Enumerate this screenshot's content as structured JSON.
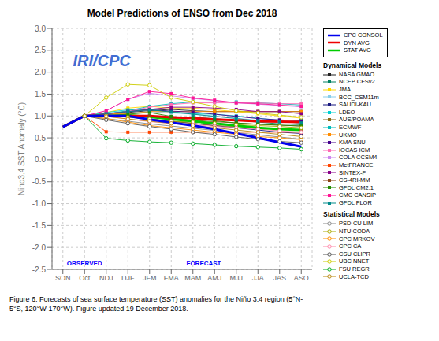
{
  "chart_data": {
    "type": "line",
    "title": "Model Predictions of ENSO from Dec 2018",
    "y_label": "Nino3.4 SST Anomaly (°C)",
    "caption": "Figure 6. Forecasts of sea surface temperature (SST) anomalies for the Niño 3.4 region (5°N-\n5°S, 120°W-170°W). Figure updated 19 December 2018.",
    "annotations": [
      "OBSERVED",
      "FORECAST",
      "IRI/CPC",
      "Dynamical Models",
      "Statistical Models"
    ],
    "categories": [
      "SON",
      "Oct",
      "NDJ",
      "DJF",
      "JFM",
      "FMA",
      "MAM",
      "AMJ",
      "MJJ",
      "JJA",
      "JAS",
      "ASO"
    ],
    "ylim": [
      -2.5,
      3.0
    ],
    "yticks": [
      -2.5,
      {
        "value": -2,
        "label": "-2.0"
      },
      -1.5,
      {
        "value": -1,
        "label": "-1.0"
      },
      -0.5,
      {
        "value": 0,
        "label": "0.0"
      },
      0.5,
      {
        "value": 1,
        "label": "1.0"
      },
      1.5,
      {
        "value": 2,
        "label": "2.0"
      },
      2.5,
      {
        "value": 3,
        "label": "3.0"
      }
    ],
    "grid": true,
    "legend": "right",
    "series": [
      {
        "name": "CPC CONSOL",
        "color": "#0000EE",
        "values": [
          0.75,
          1.0,
          1.0,
          1.0,
          0.92,
          0.85,
          0.78,
          0.7,
          0.6,
          0.5,
          0.4,
          0.3
        ]
      },
      {
        "name": "DYN AVG",
        "color": "#EE0000",
        "values": [
          0.75,
          1.0,
          1.0,
          1.0,
          1.0,
          0.97,
          0.95,
          0.92,
          0.9,
          0.88,
          0.87,
          0.86
        ]
      },
      {
        "name": "STAT AVG",
        "color": "#00CC00",
        "values": [
          0.75,
          1.0,
          1.0,
          1.02,
          0.98,
          0.93,
          0.88,
          0.83,
          0.78,
          0.73,
          0.7,
          0.68
        ]
      },
      {
        "name": "NASA GMAO",
        "color": "#222222",
        "marker": "square",
        "values": [
          null,
          1.0,
          1.02,
          1.08,
          1.12,
          1.15,
          1.12,
          1.1,
          1.1,
          1.1,
          1.1,
          1.1
        ]
      },
      {
        "name": "NCEP CFSv2",
        "color": "#008060",
        "marker": "square",
        "values": [
          null,
          1.0,
          1.02,
          1.0,
          1.0,
          0.98,
          0.97,
          0.94,
          0.9,
          0.86,
          0.82,
          0.8
        ]
      },
      {
        "name": "JMA",
        "color": "#FFD700",
        "marker": "square",
        "values": [
          null,
          1.0,
          1.08,
          1.18,
          1.22,
          1.18,
          1.18,
          1.14,
          1.1,
          1.05,
          1.0,
          0.95
        ]
      },
      {
        "name": "BCC_CSM11m",
        "color": "#87CEEB",
        "marker": "square",
        "values": [
          null,
          1.0,
          1.02,
          1.06,
          1.1,
          1.07,
          1.04,
          1.0,
          0.95,
          0.9,
          0.87,
          0.84
        ]
      },
      {
        "name": "SAUDI-KAU",
        "color": "#191980",
        "marker": "square",
        "values": [
          null,
          1.0,
          1.0,
          0.98,
          0.93,
          0.88,
          0.83,
          0.78,
          0.73,
          0.68,
          0.63,
          0.6
        ]
      },
      {
        "name": "LDEO",
        "color": "#00CED1",
        "marker": "square",
        "values": [
          null,
          1.0,
          1.08,
          1.14,
          1.14,
          1.1,
          1.05,
          1.04,
          1.0,
          0.95,
          0.9,
          0.9
        ]
      },
      {
        "name": "AUS/POAMA",
        "color": "#8B6914",
        "marker": "square",
        "values": [
          null,
          1.0,
          1.03,
          0.98,
          0.93,
          0.88,
          0.83,
          0.78,
          0.76,
          0.73,
          0.7,
          0.68
        ]
      },
      {
        "name": "ECMWF",
        "color": "#00BBBB",
        "marker": "square",
        "values": [
          null,
          1.0,
          1.05,
          1.12,
          1.22,
          1.28,
          1.32,
          1.32,
          1.32,
          1.3,
          1.28,
          1.25
        ]
      },
      {
        "name": "UKMO",
        "color": "#FF8C00",
        "marker": "square",
        "values": [
          null,
          1.0,
          1.05,
          1.05,
          1.1,
          1.1,
          1.1,
          1.1,
          1.1,
          1.1,
          1.1,
          1.1
        ]
      },
      {
        "name": "KMA SNU",
        "color": "#44008B",
        "marker": "square",
        "values": [
          null,
          1.0,
          1.05,
          1.1,
          1.14,
          1.11,
          1.09,
          1.04,
          0.99,
          0.94,
          0.91,
          0.89
        ]
      },
      {
        "name": "IOCAS ICM",
        "color": "#FF69B4",
        "marker": "square",
        "values": [
          null,
          1.0,
          1.05,
          1.1,
          1.2,
          1.26,
          1.3,
          1.3,
          1.3,
          1.3,
          1.28,
          1.28
        ]
      },
      {
        "name": "COLA CCSM4",
        "color": "#CC88EE",
        "marker": "square",
        "values": [
          null,
          1.0,
          1.12,
          1.38,
          1.52,
          1.46,
          1.4,
          1.35,
          1.3,
          1.27,
          1.24,
          1.21
        ]
      },
      {
        "name": "MetFRANCE",
        "color": "#FF4400",
        "marker": "square",
        "values": [
          null,
          1.0,
          0.64,
          0.63,
          0.63,
          0.63,
          0.63,
          0.63,
          0.63,
          0.63,
          0.63,
          0.63
        ]
      },
      {
        "name": "SINTEX-F",
        "color": "#880088",
        "marker": "square",
        "values": [
          null,
          1.0,
          1.05,
          1.1,
          1.15,
          1.2,
          1.2,
          1.18,
          1.15,
          1.1,
          1.1,
          1.05
        ]
      },
      {
        "name": "CS-4RI-MM",
        "color": "#8B4513",
        "marker": "square",
        "values": [
          null,
          1.0,
          1.0,
          1.0,
          1.0,
          0.95,
          0.9,
          0.87,
          0.84,
          0.81,
          0.79,
          0.77
        ]
      },
      {
        "name": "GFDL CM2.1",
        "color": "#228B00",
        "marker": "square",
        "values": [
          null,
          1.0,
          1.0,
          1.04,
          1.08,
          0.99,
          0.94,
          0.89,
          0.84,
          0.81,
          0.79,
          0.77
        ]
      },
      {
        "name": "CMC CANSIP",
        "color": "#FF1493",
        "marker": "square",
        "values": [
          null,
          1.0,
          1.12,
          1.38,
          1.56,
          1.51,
          1.41,
          1.36,
          1.3,
          1.28,
          1.25,
          1.22
        ]
      },
      {
        "name": "GFDL FLOR",
        "color": "#008B8B",
        "marker": "square",
        "values": [
          null,
          1.0,
          1.05,
          1.1,
          1.14,
          1.09,
          1.04,
          0.99,
          0.94,
          0.89,
          0.87,
          0.84
        ]
      },
      {
        "name": "PSD-CU LIM",
        "color": "#888888",
        "marker": "circle",
        "values": [
          null,
          1.0,
          0.94,
          0.88,
          0.82,
          0.77,
          0.72,
          0.67,
          0.62,
          0.57,
          0.52,
          0.47
        ]
      },
      {
        "name": "NTU CODA",
        "color": "#AAAA00",
        "marker": "circle",
        "values": [
          null,
          1.0,
          1.0,
          0.97,
          0.93,
          0.88,
          0.86,
          0.83,
          0.8,
          0.78,
          0.76,
          0.73
        ]
      },
      {
        "name": "CPC MRKOV",
        "color": "#FF8C00",
        "marker": "circle",
        "values": [
          null,
          1.0,
          0.94,
          0.86,
          0.78,
          0.73,
          0.68,
          0.63,
          0.58,
          0.53,
          0.5,
          0.46
        ]
      },
      {
        "name": "CPC CA",
        "color": "#FF88AA",
        "marker": "circle",
        "values": [
          null,
          1.0,
          0.99,
          0.93,
          0.87,
          0.83,
          0.8,
          0.76,
          0.73,
          0.7,
          0.66,
          0.63
        ]
      },
      {
        "name": "CSU CLIPR",
        "color": "#555555",
        "marker": "circle",
        "values": [
          null,
          1.0,
          0.91,
          0.83,
          0.76,
          0.7,
          0.63,
          0.58,
          0.52,
          0.47,
          0.42,
          0.39
        ]
      },
      {
        "name": "UBC NNET",
        "color": "#CCCC00",
        "marker": "circle",
        "values": [
          null,
          1.0,
          1.42,
          1.72,
          1.7,
          1.42,
          1.32,
          1.22,
          1.12,
          1.07,
          1.02,
          0.97
        ]
      },
      {
        "name": "FSU REGR",
        "color": "#00AA22",
        "marker": "circle",
        "values": [
          null,
          1.0,
          0.49,
          0.44,
          0.41,
          0.39,
          0.37,
          0.34,
          0.31,
          0.29,
          0.27,
          0.24
        ]
      },
      {
        "name": "UCLA-TCD",
        "color": "#B8860B",
        "marker": "circle",
        "values": [
          null,
          1.0,
          0.99,
          0.93,
          0.88,
          0.83,
          0.78,
          0.73,
          0.68,
          0.63,
          0.58,
          0.53
        ]
      },
      {
        "color": "#000000",
        "values": [
          0.75,
          1.0,
          null,
          null,
          null,
          null,
          null,
          null,
          null,
          null,
          null,
          null
        ]
      }
    ]
  }
}
